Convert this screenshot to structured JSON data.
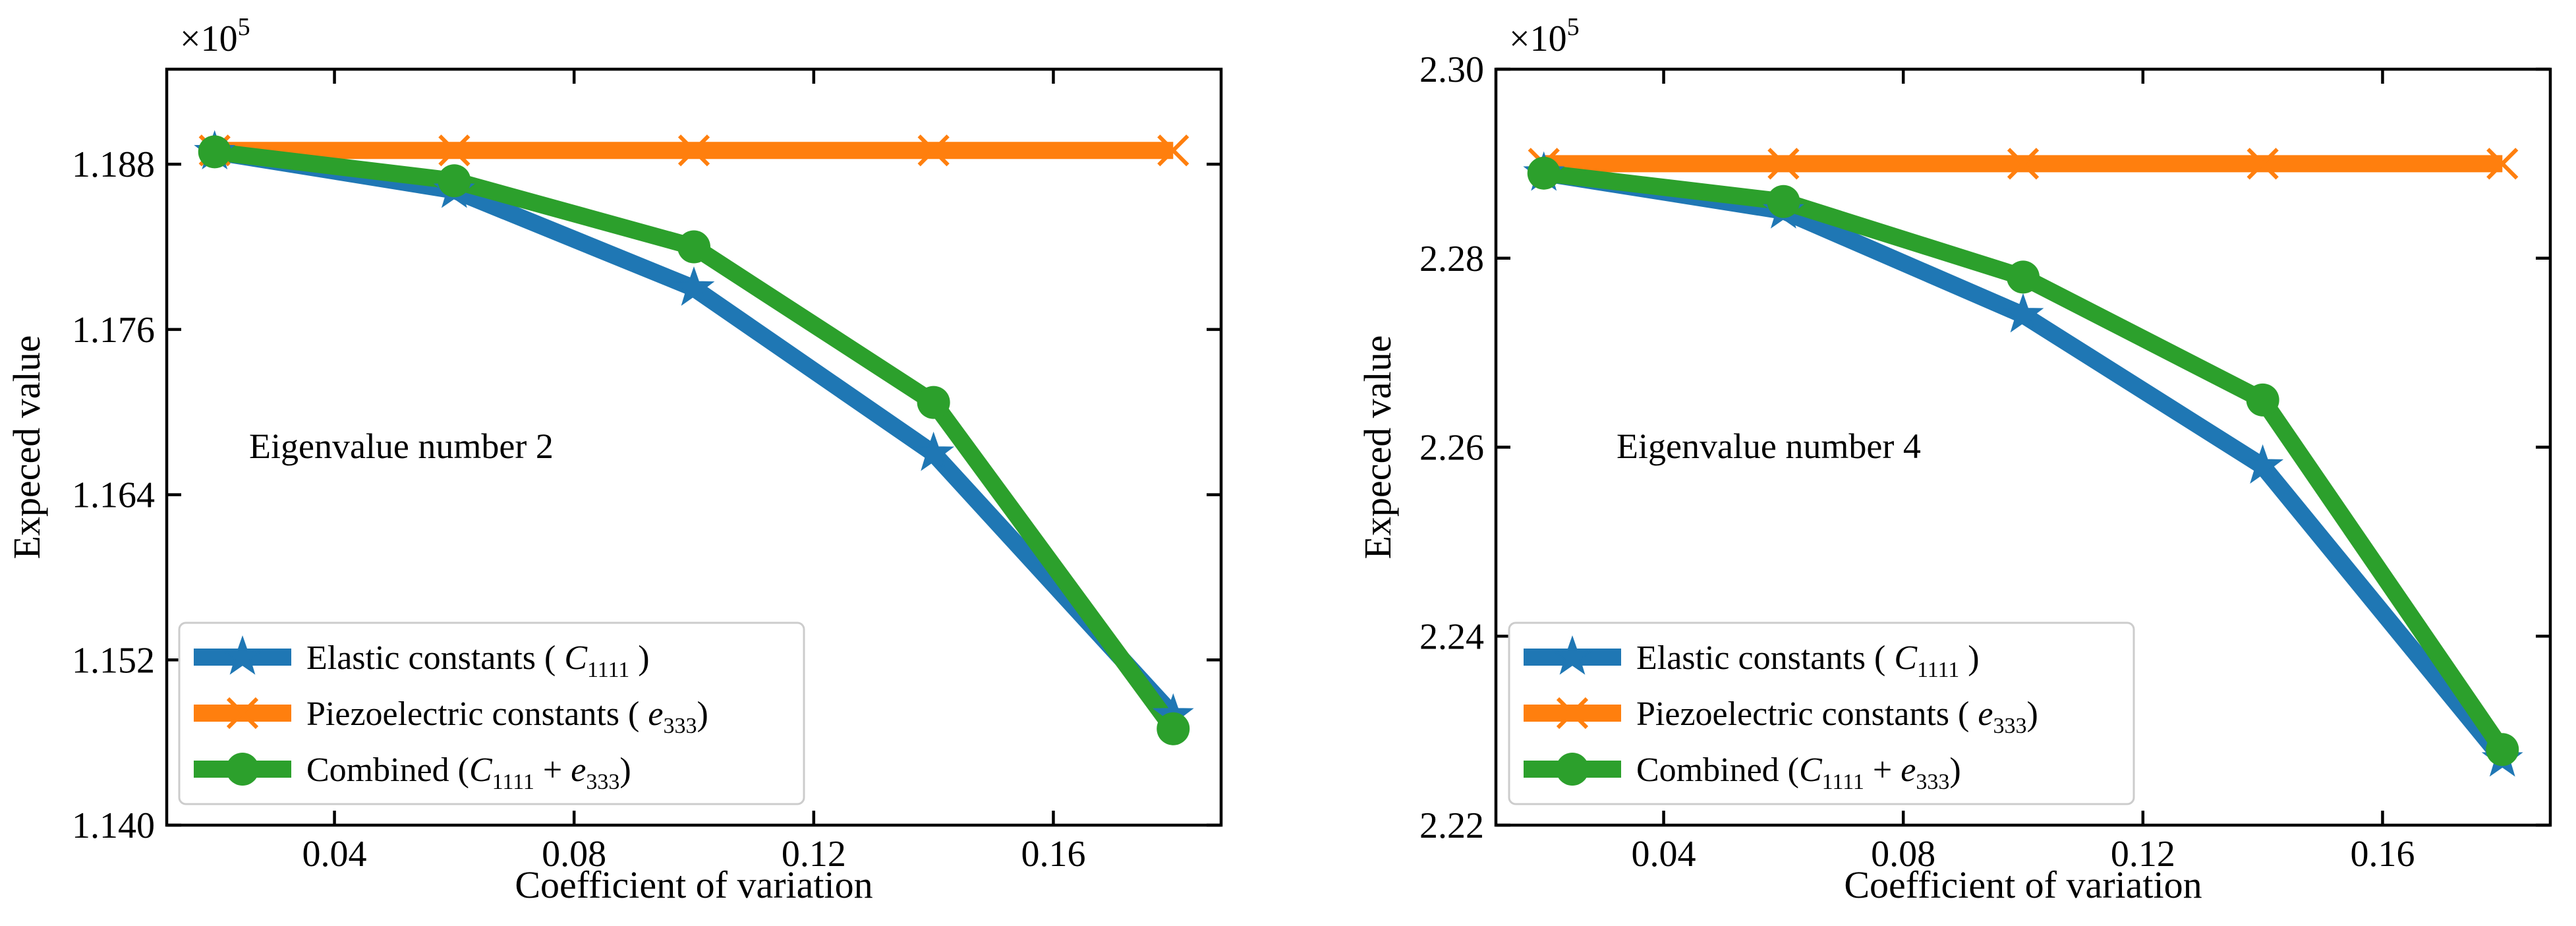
{
  "chart_data": [
    {
      "type": "line",
      "annotation": "Eigenvalue number 2",
      "xlabel": "Coefficient of variation",
      "ylabel": "Expeced value",
      "exponent_base": "×10",
      "exponent_power": "5",
      "xlim": [
        0.012,
        0.188
      ],
      "ylim": [
        1.14,
        1.1949
      ],
      "xticks": [
        0.04,
        0.08,
        0.12,
        0.16
      ],
      "xtick_labels": [
        "0.04",
        "0.08",
        "0.12",
        "0.16"
      ],
      "yticks": [
        1.14,
        1.152,
        1.164,
        1.176,
        1.188
      ],
      "ytick_labels": [
        "1.140",
        "1.152",
        "1.164",
        "1.176",
        "1.188"
      ],
      "legend_position": "lower-left",
      "series": [
        {
          "name": "Elastic constants",
          "label_prefix": "Elastic constants ( ",
          "label_symbol": "C",
          "label_sub": "1111",
          "label_suffix": " )",
          "color": "#1f77b4",
          "marker": "star",
          "x": [
            0.02,
            0.06,
            0.1,
            0.14,
            0.18
          ],
          "values": [
            1.1889,
            1.1861,
            1.179,
            1.167,
            1.148
          ]
        },
        {
          "name": "Piezoelectric constants",
          "label_prefix": "Piezoelectric constants ( ",
          "label_symbol": "e",
          "label_sub": "333",
          "label_suffix": ")",
          "color": "#ff7f0e",
          "marker": "x",
          "x": [
            0.02,
            0.06,
            0.1,
            0.14,
            0.18
          ],
          "values": [
            1.189,
            1.189,
            1.189,
            1.189,
            1.189
          ]
        },
        {
          "name": "Combined",
          "label_prefix": "Combined (",
          "label_symbol": "C",
          "label_sub": "1111",
          "label_mid": " + ",
          "label_symbol2": "e",
          "label_sub2": "333",
          "label_suffix": ")",
          "color": "#2ca02c",
          "marker": "circle",
          "x": [
            0.02,
            0.06,
            0.1,
            0.14,
            0.18
          ],
          "values": [
            1.1889,
            1.1868,
            1.182,
            1.1707,
            1.147
          ]
        }
      ]
    },
    {
      "type": "line",
      "annotation": "Eigenvalue number 4",
      "xlabel": "Coefficient of variation",
      "ylabel": "Expeced value",
      "exponent_base": "×10",
      "exponent_power": "5",
      "xlim": [
        0.012,
        0.188
      ],
      "ylim": [
        2.22,
        2.3
      ],
      "xticks": [
        0.04,
        0.08,
        0.12,
        0.16
      ],
      "xtick_labels": [
        "0.04",
        "0.08",
        "0.12",
        "0.16"
      ],
      "yticks": [
        2.22,
        2.24,
        2.26,
        2.28,
        2.3
      ],
      "ytick_labels": [
        "2.22",
        "2.24",
        "2.26",
        "2.28",
        "2.30"
      ],
      "legend_position": "lower-left",
      "series": [
        {
          "name": "Elastic constants",
          "label_prefix": "Elastic constants ( ",
          "label_symbol": "C",
          "label_sub": "1111",
          "label_suffix": " )",
          "color": "#1f77b4",
          "marker": "star",
          "x": [
            0.02,
            0.06,
            0.1,
            0.14,
            0.18
          ],
          "values": [
            2.289,
            2.285,
            2.274,
            2.258,
            2.227
          ]
        },
        {
          "name": "Piezoelectric constants",
          "label_prefix": "Piezoelectric constants ( ",
          "label_symbol": "e",
          "label_sub": "333",
          "label_suffix": ")",
          "color": "#ff7f0e",
          "marker": "x",
          "x": [
            0.02,
            0.06,
            0.1,
            0.14,
            0.18
          ],
          "values": [
            2.29,
            2.29,
            2.29,
            2.29,
            2.29
          ]
        },
        {
          "name": "Combined",
          "label_prefix": "Combined (",
          "label_symbol": "C",
          "label_sub": "1111",
          "label_mid": " + ",
          "label_symbol2": "e",
          "label_sub2": "333",
          "label_suffix": ")",
          "color": "#2ca02c",
          "marker": "circle",
          "x": [
            0.02,
            0.06,
            0.1,
            0.14,
            0.18
          ],
          "values": [
            2.289,
            2.286,
            2.278,
            2.265,
            2.228
          ]
        }
      ]
    }
  ]
}
